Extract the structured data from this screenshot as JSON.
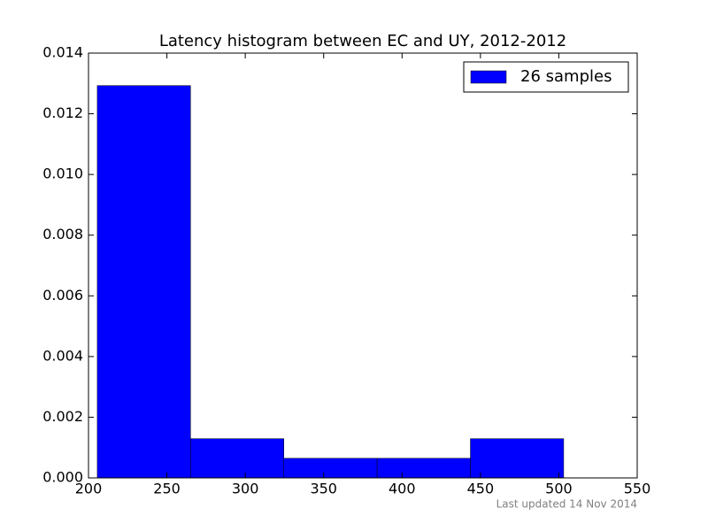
{
  "chart_data": {
    "type": "histogram",
    "title": "Latency histogram between EC and UY, 2012-2012",
    "bins": [
      205.6,
      265.1,
      324.6,
      384.1,
      443.6,
      503.1
    ],
    "series": [
      {
        "name": "26 samples",
        "color": "#0000ff",
        "values": [
          0.01293,
          0.001293,
          0.000646,
          0.000646,
          0.001293
        ]
      }
    ],
    "xlim": [
      200,
      550
    ],
    "xticks": [
      200,
      250,
      300,
      350,
      400,
      450,
      500,
      550
    ],
    "ylim": [
      0,
      0.014
    ],
    "yticks": [
      {
        "value": 0,
        "label": "0.000"
      },
      {
        "value": 0.002,
        "label": "0.002"
      },
      {
        "value": 0.004,
        "label": "0.004"
      },
      {
        "value": 0.006,
        "label": "0.006"
      },
      {
        "value": 0.008,
        "label": "0.008"
      },
      {
        "value": 0.01,
        "label": "0.010"
      },
      {
        "value": 0.012,
        "label": "0.012"
      },
      {
        "value": 0.014,
        "label": "0.014"
      }
    ],
    "legend": "upper right",
    "footnote": "Last updated 14 Nov 2014"
  }
}
